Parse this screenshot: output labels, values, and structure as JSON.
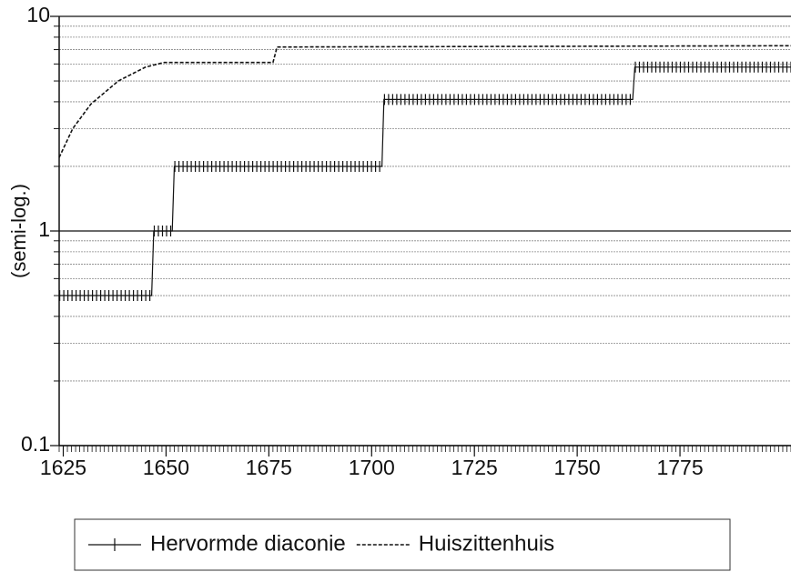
{
  "chart_data": {
    "type": "line",
    "y_label": "(semi-log.)",
    "log_scale_y": true,
    "xlim": [
      1624,
      1802
    ],
    "xticks": [
      1625,
      1650,
      1675,
      1700,
      1725,
      1750,
      1775
    ],
    "xminor_step": 1,
    "ylim": [
      0.1,
      10
    ],
    "yticks": [
      0.1,
      1,
      10
    ],
    "minor_yticks": [
      0.2,
      0.3,
      0.4,
      0.5,
      0.6,
      0.7,
      0.8,
      0.9,
      2,
      3,
      4,
      5,
      6,
      7,
      8,
      9
    ],
    "grid": true,
    "series": [
      {
        "name": "Hervormde diaconie",
        "color": "#111111",
        "style": "ticked",
        "x": [
          1624,
          1646.5,
          1647,
          1651.5,
          1652,
          1702.5,
          1703,
          1763.5,
          1764,
          1802
        ],
        "values": [
          0.5,
          0.5,
          1,
          1,
          2,
          2,
          4.1,
          4.1,
          5.8,
          5.8
        ]
      },
      {
        "name": "Huiszittenhuis",
        "color": "#111111",
        "style": "dashed",
        "x": [
          1624,
          1627.3,
          1631.7,
          1638.4,
          1645,
          1649.5,
          1676,
          1677,
          1802
        ],
        "values": [
          2.2,
          3.0,
          3.9,
          5.0,
          5.8,
          6.1,
          6.1,
          7.2,
          7.3
        ]
      }
    ]
  }
}
